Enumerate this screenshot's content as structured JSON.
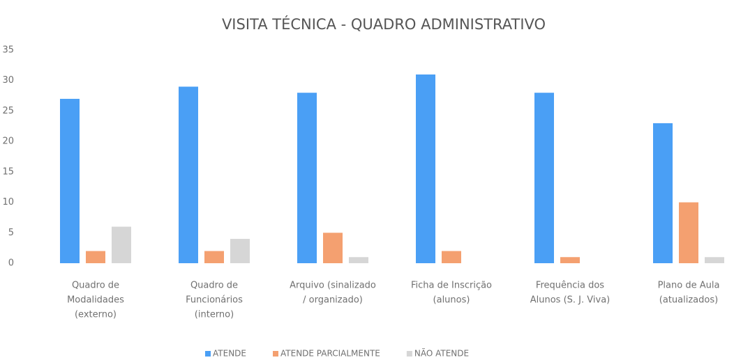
{
  "chart_data": {
    "type": "bar",
    "title": "VISITA TÉCNICA - QUADRO ADMINISTRATIVO",
    "categories": [
      [
        "Quadro de",
        "Modalidades",
        "(externo)"
      ],
      [
        "Quadro de",
        "Funcionários",
        "(interno)"
      ],
      [
        "Arquivo (sinalizado",
        "/ organizado)"
      ],
      [
        "Ficha de Inscrição",
        "(alunos)"
      ],
      [
        "Frequência dos",
        "Alunos (S. J. Viva)"
      ],
      [
        "Plano de Aula",
        "(atualizados)"
      ]
    ],
    "series": [
      {
        "name": "ATENDE",
        "color": "#4a9ff5",
        "values": [
          27,
          29,
          28,
          31,
          28,
          23
        ]
      },
      {
        "name": "ATENDE PARCIALMENTE",
        "color": "#f4a070",
        "values": [
          2,
          2,
          5,
          2,
          1,
          10
        ]
      },
      {
        "name": "NÃO ATENDE",
        "color": "#d6d6d6",
        "values": [
          6,
          4,
          1,
          0,
          0,
          1
        ]
      }
    ],
    "ylim": [
      0,
      35
    ],
    "yticks": [
      0,
      5,
      10,
      15,
      20,
      25,
      30,
      35
    ],
    "grid": false,
    "legend": "bottom"
  }
}
